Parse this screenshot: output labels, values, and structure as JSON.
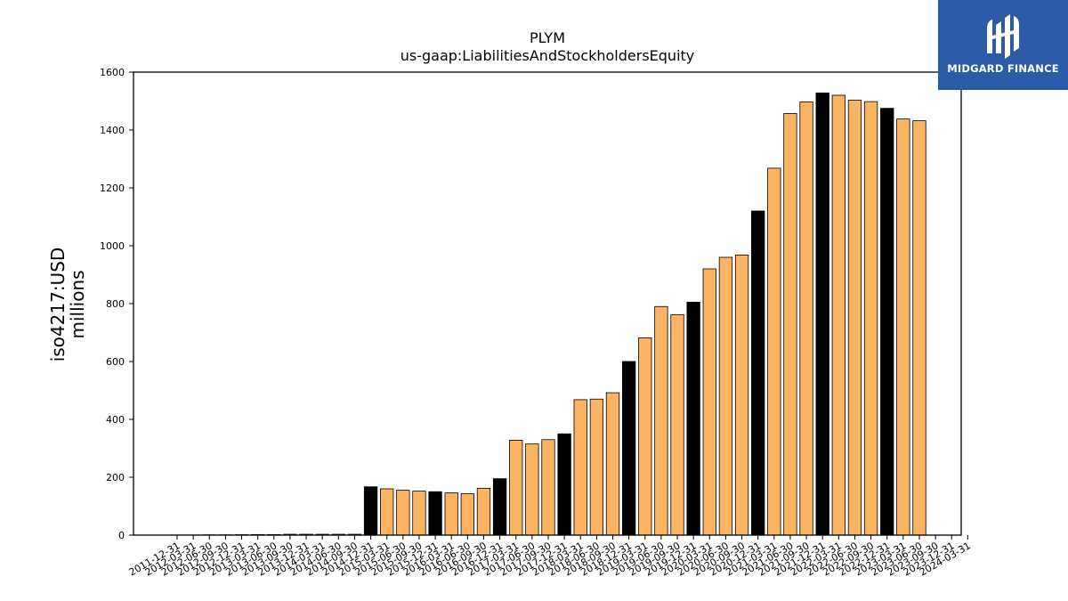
{
  "brand": {
    "name": "MIDGARD FINANCE",
    "bg_color": "#2b5aa8",
    "icon": "midgard-logo-mark"
  },
  "chart_data": {
    "type": "bar",
    "title": "PLYM",
    "subtitle": "us-gaap:LiabilitiesAndStockholdersEquity",
    "xlabel": "",
    "ylabel": "iso4217:USD",
    "ylabel2": "millions",
    "ylim": [
      0,
      1600
    ],
    "yticks": [
      0,
      200,
      400,
      600,
      800,
      1000,
      1200,
      1400,
      1600
    ],
    "grid": false,
    "colors": {
      "annual": "#000000",
      "quarterly": "#fdb462",
      "edge": "#000000"
    },
    "categories": [
      "2011-12-31",
      "2012-03-31",
      "2012-06-30",
      "2012-09-30",
      "2012-12-31",
      "2013-03-31",
      "2013-06-30",
      "2013-09-30",
      "2013-12-31",
      "2014-03-31",
      "2014-06-30",
      "2014-09-30",
      "2014-12-31",
      "2015-03-31",
      "2015-06-30",
      "2015-09-30",
      "2015-12-31",
      "2016-03-31",
      "2016-06-30",
      "2016-09-30",
      "2016-12-31",
      "2017-03-31",
      "2017-06-30",
      "2017-09-30",
      "2017-12-31",
      "2018-03-31",
      "2018-06-30",
      "2018-09-30",
      "2018-12-31",
      "2019-03-31",
      "2019-06-30",
      "2019-09-30",
      "2019-12-31",
      "2020-03-31",
      "2020-06-30",
      "2020-09-30",
      "2020-12-31",
      "2021-03-31",
      "2021-06-30",
      "2021-09-30",
      "2021-12-31",
      "2022-03-31",
      "2022-06-30",
      "2022-09-30",
      "2022-12-31",
      "2023-03-31",
      "2023-06-30",
      "2023-09-30",
      "2023-12-31",
      "2024-03-31"
    ],
    "tick_labels": [
      "2011-12-31",
      "2012-03-31",
      "2012-06-30",
      "2012-09-30",
      "2012-12-31",
      "2013-03-31",
      "2013-06-30",
      "2013-09-30",
      "2013-12-31",
      "2014-03-31",
      "2014-06-30",
      "2014-09-30",
      "2014-12-31",
      "2015-03-31",
      "2015-06-30",
      "2015-09-30",
      "2015-12-31",
      "2016-03-31",
      "2016-06-30",
      "2016-09-30",
      "2016-12-31",
      "2017-03-31",
      "2017-06-30",
      "2017-09-30",
      "2017-12-31",
      "2018-03-31",
      "2018-06-30",
      "2018-09-30",
      "2018-12-31",
      "2019-03-31",
      "2019-06-30",
      "2019-09-30",
      "2019-12-31",
      "2020-03-31",
      "2020-06-30",
      "2020-09-30",
      "2020-12-31",
      "2021-03-31",
      "2021-06-30",
      "2021-09-30",
      "2021-12-31",
      "2022-03-31",
      "2022-06-30",
      "2022-09-30",
      "2022-12-31",
      "2023-03-31",
      "2023-06-30",
      "2023-09-30",
      "2023-12-31",
      "2024-03-31"
    ],
    "values": [
      0.5,
      0.5,
      1,
      1,
      1.5,
      2,
      2,
      3,
      3,
      3,
      3,
      3,
      167,
      160,
      155,
      152,
      150,
      146,
      143,
      162,
      195,
      328,
      315,
      330,
      350,
      468,
      470,
      492,
      600,
      682,
      790,
      762,
      805,
      920,
      960,
      968,
      1120,
      1268,
      1457,
      1497,
      1528,
      1520,
      1503,
      1498,
      1475,
      1438,
      1432,
      null,
      null,
      null
    ],
    "annual": [
      true,
      false,
      false,
      false,
      true,
      false,
      false,
      false,
      true,
      false,
      false,
      false,
      true,
      false,
      false,
      false,
      true,
      false,
      false,
      false,
      true,
      false,
      false,
      false,
      true,
      false,
      false,
      false,
      true,
      false,
      false,
      false,
      true,
      false,
      false,
      false,
      true,
      false,
      false,
      false,
      true,
      false,
      false,
      false,
      true,
      false,
      false,
      false,
      true,
      false
    ]
  }
}
